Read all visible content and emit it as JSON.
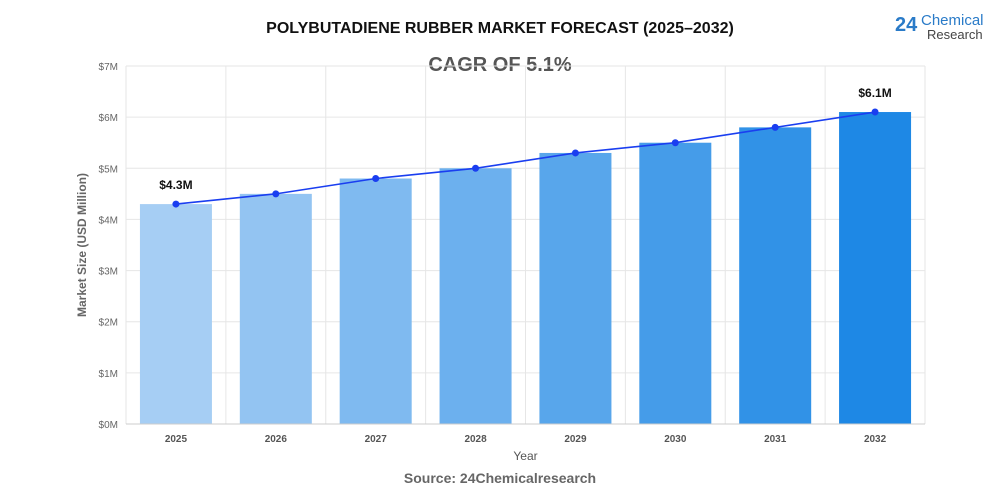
{
  "title": "POLYBUTADIENE RUBBER MARKET FORECAST (2025–2032)",
  "subtitle": "CAGR OF 5.1%",
  "logo": {
    "number": "24",
    "line1": "Chemical",
    "line2": "Research"
  },
  "source": "Source: 24Chemicalresearch",
  "chart_data": {
    "type": "bar",
    "title": "POLYBUTADIENE RUBBER MARKET FORECAST (2025–2032)",
    "xlabel": "Year",
    "ylabel": "Market Size (USD Million)",
    "categories": [
      "2025",
      "2026",
      "2027",
      "2028",
      "2029",
      "2030",
      "2031",
      "2032"
    ],
    "values": [
      4.3,
      4.5,
      4.8,
      5.0,
      5.3,
      5.5,
      5.8,
      6.1
    ],
    "ylim": [
      0,
      7
    ],
    "yticks": [
      "$0M",
      "$1M",
      "$2M",
      "$3M",
      "$4M",
      "$5M",
      "$6M",
      "$7M"
    ],
    "data_labels": {
      "0": "$4.3M",
      "7": "$6.1M"
    },
    "overlay": "line with markers",
    "grid": true,
    "colors": {
      "bar_start": "#a6cef4",
      "bar_end": "#1e88e5",
      "line": "#1a3ef0"
    }
  }
}
